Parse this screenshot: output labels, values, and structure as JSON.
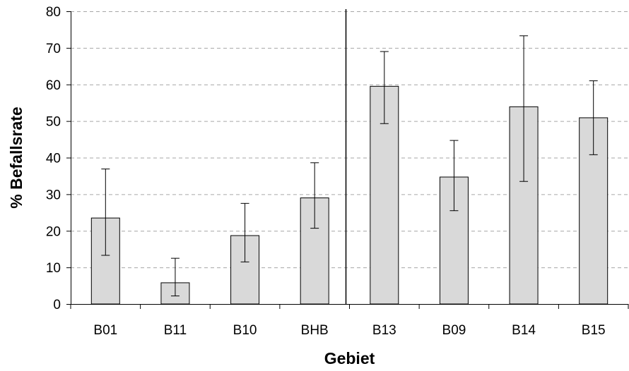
{
  "chart_data": {
    "type": "bar",
    "title": "",
    "xlabel": "Gebiet",
    "ylabel": "% Befallsrate",
    "ylim": [
      0,
      80
    ],
    "yticks": [
      0,
      10,
      20,
      30,
      40,
      50,
      60,
      70,
      80
    ],
    "grid": "horizontal dashed",
    "categories": [
      "B01",
      "B11",
      "B10",
      "BHB",
      "B13",
      "B09",
      "B14",
      "B15"
    ],
    "values": [
      23.5,
      5.8,
      18.7,
      29.0,
      59.5,
      34.7,
      53.9,
      50.9
    ],
    "error_low": [
      13.3,
      2.2,
      11.5,
      20.7,
      49.3,
      25.5,
      33.5,
      40.8
    ],
    "error_high": [
      36.9,
      12.5,
      27.5,
      38.6,
      69.0,
      44.7,
      73.3,
      61.0
    ],
    "separator_between": [
      "BHB",
      "B13"
    ],
    "bar_color": "#d9d9d9",
    "bar_edge_color": "#000000",
    "grid_color": "#a6a6a6"
  }
}
